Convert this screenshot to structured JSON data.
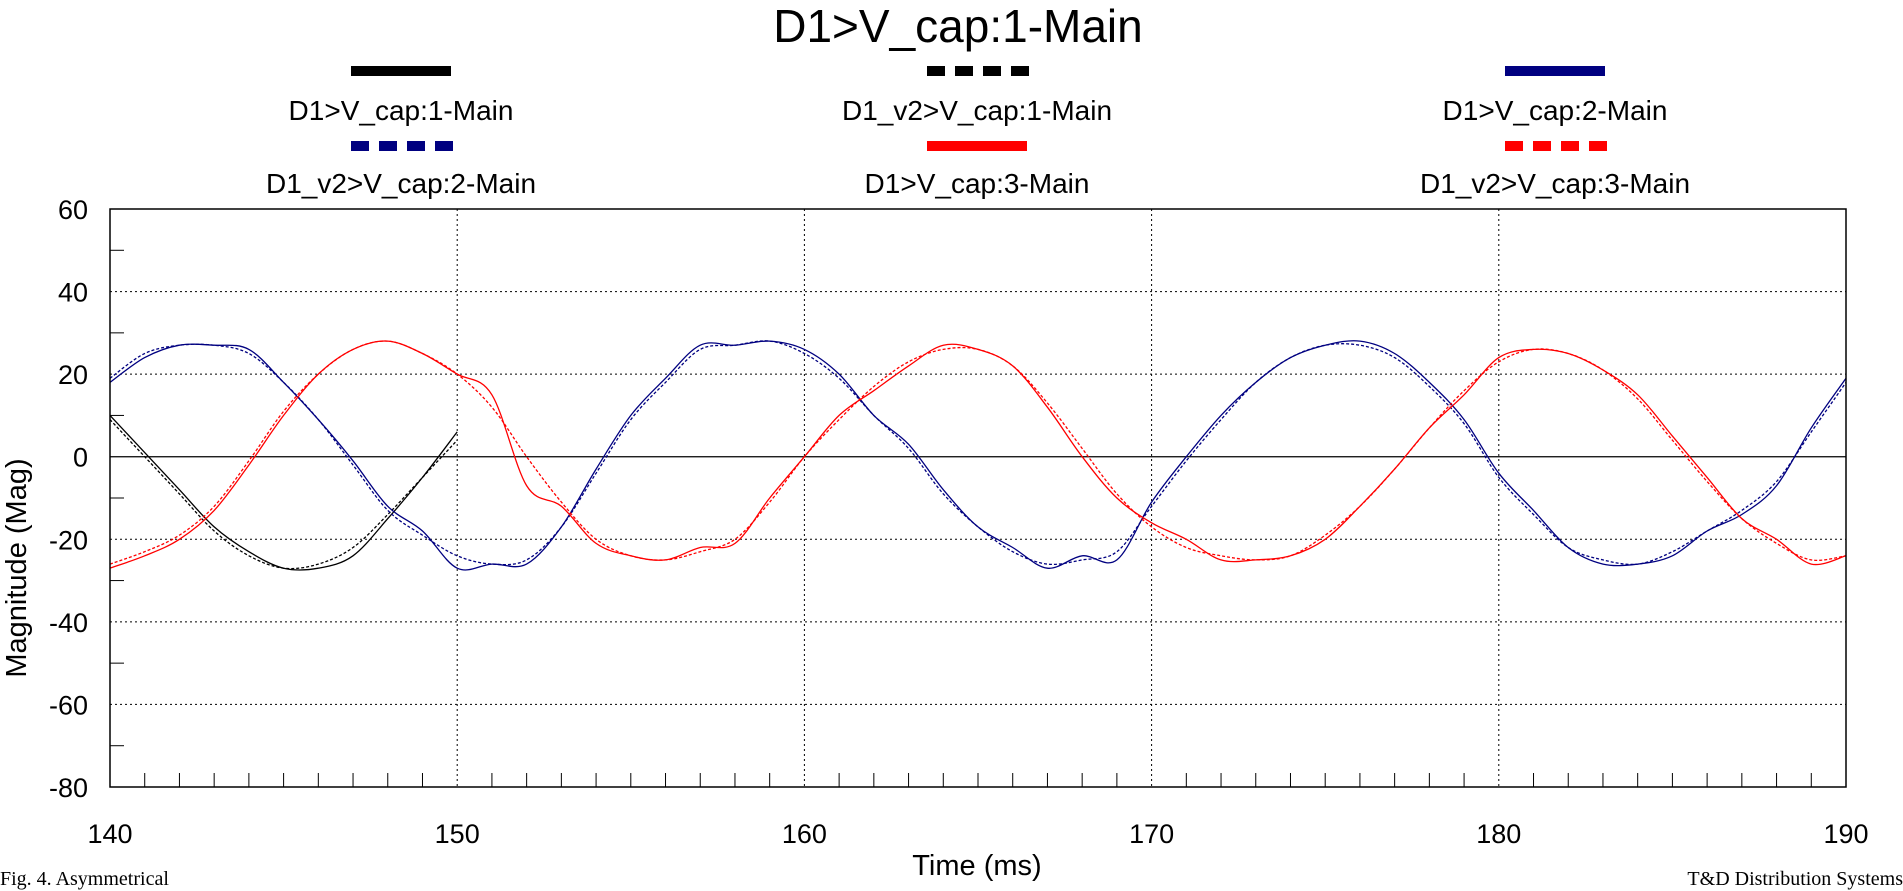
{
  "chart_data": {
    "type": "line",
    "title": "D1>V_cap:1-Main",
    "xlabel": "Time (ms)",
    "ylabel": "Magnitude (Mag)",
    "xlim": [
      140,
      190
    ],
    "ylim": [
      -80,
      60
    ],
    "x_ticks": [
      "140",
      "150",
      "160",
      "170",
      "180",
      "190"
    ],
    "y_ticks": [
      "60",
      "40",
      "20",
      "0",
      "-20",
      "-40",
      "-60",
      "-80"
    ],
    "grid": true,
    "grid_style": "dotted",
    "legend_position": "top",
    "colors": {
      "black": "#000000",
      "navy": "#000080",
      "red": "#ff0000"
    },
    "series": [
      {
        "name": "D1>V_cap:1-Main",
        "color": "#000000",
        "style": "solid",
        "x": [
          140,
          141,
          142,
          143,
          144,
          145,
          146,
          147,
          148,
          149,
          150
        ],
        "y": [
          10,
          1,
          -8,
          -17,
          -23,
          -27,
          -27,
          -24,
          -15,
          -5,
          6
        ]
      },
      {
        "name": "D1_v2>V_cap:1-Main",
        "color": "#000000",
        "style": "dashed",
        "x": [
          140,
          141,
          142,
          143,
          144,
          145,
          146,
          147,
          148,
          149,
          150
        ],
        "y": [
          9,
          0,
          -9,
          -18,
          -24,
          -27,
          -26,
          -22,
          -14,
          -5,
          4
        ]
      },
      {
        "name": "D1>V_cap:2-Main",
        "color": "#000080",
        "style": "solid",
        "x": [
          140,
          141,
          142,
          143,
          144,
          145,
          146,
          147,
          148,
          149,
          150,
          151,
          152,
          153,
          154,
          155,
          156,
          157,
          158,
          159,
          160,
          161,
          162,
          163,
          164,
          165,
          166,
          167,
          168,
          169,
          170,
          171,
          172,
          173,
          174,
          175,
          176,
          177,
          178,
          179,
          180,
          181,
          182,
          183,
          184,
          185,
          186,
          187,
          188,
          189,
          190
        ],
        "y": [
          18,
          24,
          27,
          27,
          26,
          18,
          9,
          -1,
          -12,
          -18,
          -27,
          -26,
          -26,
          -17,
          -3,
          10,
          19,
          27,
          27,
          28,
          26,
          20,
          10,
          3,
          -8,
          -17,
          -22,
          -27,
          -24,
          -25,
          -11,
          0,
          10,
          18,
          24,
          27,
          28,
          25,
          18,
          9,
          -4,
          -13,
          -22,
          -26,
          -26,
          -24,
          -18,
          -14,
          -7,
          7,
          19
        ]
      },
      {
        "name": "D1_v2>V_cap:2-Main",
        "color": "#000080",
        "style": "dashed",
        "x": [
          140,
          141,
          142,
          143,
          144,
          145,
          146,
          147,
          148,
          149,
          150,
          151,
          152,
          153,
          154,
          155,
          156,
          157,
          158,
          159,
          160,
          161,
          162,
          163,
          164,
          165,
          166,
          167,
          168,
          169,
          170,
          171,
          172,
          173,
          174,
          175,
          176,
          177,
          178,
          179,
          180,
          181,
          182,
          183,
          184,
          185,
          186,
          187,
          188,
          189,
          190
        ],
        "y": [
          19,
          25,
          27,
          27,
          25,
          18,
          9,
          -2,
          -13,
          -19,
          -24,
          -26,
          -25,
          -17,
          -4,
          9,
          18,
          26,
          27,
          28,
          25,
          19,
          10,
          2,
          -9,
          -17,
          -23,
          -26,
          -25,
          -23,
          -12,
          -1,
          9,
          18,
          24,
          27,
          27,
          24,
          17,
          8,
          -5,
          -14,
          -22,
          -25,
          -26,
          -23,
          -18,
          -13,
          -6,
          6,
          18
        ]
      },
      {
        "name": "D1>V_cap:3-Main",
        "color": "#ff0000",
        "style": "solid",
        "x": [
          140,
          141,
          142,
          143,
          144,
          145,
          146,
          147,
          148,
          149,
          150,
          151,
          152,
          153,
          154,
          155,
          156,
          157,
          158,
          159,
          160,
          161,
          162,
          163,
          164,
          165,
          166,
          167,
          168,
          169,
          170,
          171,
          172,
          173,
          174,
          175,
          176,
          177,
          178,
          179,
          180,
          181,
          182,
          183,
          184,
          185,
          186,
          187,
          188,
          189,
          190
        ],
        "y": [
          -27,
          -24,
          -20,
          -13,
          -2,
          10,
          20,
          26,
          28,
          25,
          20,
          15,
          -7,
          -12,
          -21,
          -24,
          -25,
          -22,
          -21,
          -10,
          0,
          10,
          16,
          22,
          27,
          26,
          22,
          12,
          0,
          -10,
          -16,
          -20,
          -25,
          -25,
          -24,
          -20,
          -12,
          -3,
          7,
          15,
          24,
          26,
          25,
          21,
          15,
          5,
          -5,
          -15,
          -20,
          -26,
          -24
        ]
      },
      {
        "name": "D1_v2>V_cap:3-Main",
        "color": "#ff0000",
        "style": "dashed",
        "x": [
          140,
          141,
          142,
          143,
          144,
          145,
          146,
          147,
          148,
          149,
          150,
          151,
          152,
          153,
          154,
          155,
          156,
          157,
          158,
          159,
          160,
          161,
          162,
          163,
          164,
          165,
          166,
          167,
          168,
          169,
          170,
          171,
          172,
          173,
          174,
          175,
          176,
          177,
          178,
          179,
          180,
          181,
          182,
          183,
          184,
          185,
          186,
          187,
          188,
          189,
          190
        ],
        "y": [
          -26,
          -23,
          -19,
          -12,
          -1,
          11,
          20,
          26,
          28,
          25,
          20,
          12,
          0,
          -11,
          -20,
          -24,
          -25,
          -23,
          -20,
          -11,
          0,
          9,
          17,
          23,
          26,
          26,
          22,
          13,
          2,
          -9,
          -17,
          -22,
          -24,
          -25,
          -24,
          -19,
          -12,
          -3,
          7,
          16,
          23,
          26,
          25,
          21,
          14,
          4,
          -6,
          -15,
          -21,
          -25,
          -24
        ]
      }
    ]
  },
  "caption_fragments": {
    "left": "Fig. 4. Asymmetrical",
    "right": "T&D Distribution Systems"
  }
}
